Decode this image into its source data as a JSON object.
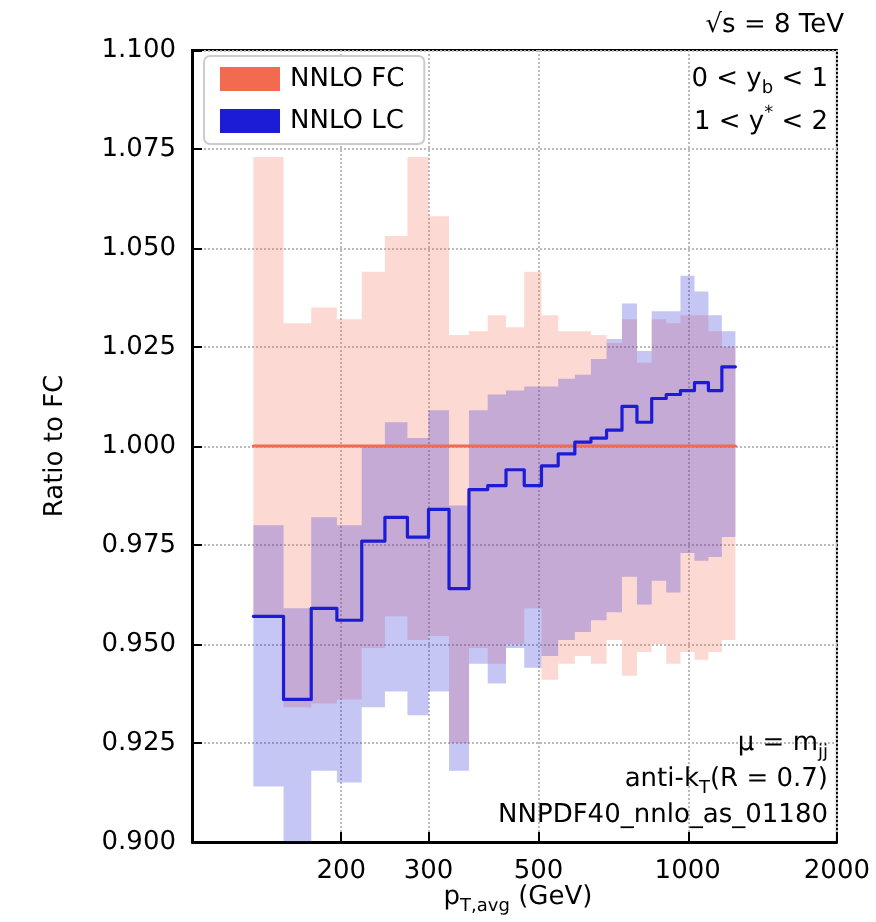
{
  "chart_data": {
    "type": "step",
    "xlabel": "p$_{T,avg}$ (GeV)",
    "ylabel": "Ratio to FC",
    "annotations": [
      "√s = 8 TeV",
      "0 < y$_{b}$ < 1",
      "1 < y$^{*}$ < 2",
      "μ = m$_{jj}$",
      "anti-k$_{T}$(R = 0.7)",
      "NNPDF40_nnlo_as_01180"
    ],
    "log": "x",
    "xlim": [
      100,
      2000
    ],
    "xticks": [
      200,
      300,
      500,
      1000,
      2000
    ],
    "ylim": [
      0.9,
      1.1
    ],
    "yticks": [
      {
        "value": 0.9,
        "label": "0.900"
      },
      {
        "value": 0.925,
        "label": "0.925"
      },
      {
        "value": 0.95,
        "label": "0.950"
      },
      {
        "value": 0.975,
        "label": "0.975"
      },
      {
        "value": 1.0,
        "label": "1.000"
      },
      {
        "value": 1.025,
        "label": "1.025"
      },
      {
        "value": 1.05,
        "label": "1.050"
      },
      {
        "value": 1.075,
        "label": "1.075"
      },
      {
        "value": 1.1,
        "label": "1.100"
      }
    ],
    "x": [
      133,
      153,
      174,
      196,
      220,
      245,
      272,
      300,
      330,
      362,
      395,
      430,
      468,
      507,
      548,
      592,
      638,
      686,
      737,
      790,
      846,
      905,
      967,
      1032,
      1101,
      1172,
      1248
    ],
    "series": [
      {
        "name": "NNLO FC",
        "color": "#f26b50",
        "values": [
          1.0,
          1.0,
          1.0,
          1.0,
          1.0,
          1.0,
          1.0,
          1.0,
          1.0,
          1.0,
          1.0,
          1.0,
          1.0,
          1.0,
          1.0,
          1.0,
          1.0,
          1.0,
          1.0,
          1.0,
          1.0,
          1.0,
          1.0,
          1.0,
          1.0,
          1.0,
          1.0
        ],
        "lower": [
          0.957,
          0.934,
          0.935,
          0.936,
          0.949,
          0.957,
          0.951,
          0.952,
          0.925,
          0.949,
          0.945,
          0.95,
          0.959,
          0.941,
          0.945,
          0.947,
          0.945,
          0.951,
          0.942,
          0.948,
          0.95,
          0.945,
          0.948,
          0.946,
          0.948,
          0.951,
          0.951
        ],
        "upper": [
          1.073,
          1.031,
          1.035,
          1.032,
          1.044,
          1.053,
          1.073,
          1.058,
          1.028,
          1.029,
          1.033,
          1.03,
          1.044,
          1.033,
          1.029,
          1.029,
          1.028,
          1.026,
          1.032,
          1.021,
          1.032,
          1.031,
          1.033,
          1.033,
          1.029,
          1.025,
          1.025
        ]
      },
      {
        "name": "NNLO LC",
        "color": "#1c1cd6",
        "values": [
          0.957,
          0.936,
          0.959,
          0.956,
          0.976,
          0.982,
          0.977,
          0.984,
          0.964,
          0.989,
          0.99,
          0.994,
          0.99,
          0.995,
          0.998,
          1.001,
          1.002,
          1.004,
          1.01,
          1.006,
          1.012,
          1.013,
          1.014,
          1.016,
          1.014,
          1.02,
          1.02
        ],
        "lower": [
          0.914,
          0.9,
          0.918,
          0.915,
          0.934,
          0.938,
          0.932,
          0.938,
          0.918,
          0.945,
          0.94,
          0.949,
          0.944,
          0.947,
          0.951,
          0.953,
          0.956,
          0.958,
          0.967,
          0.96,
          0.966,
          0.963,
          0.973,
          0.971,
          0.972,
          0.977,
          0.977
        ],
        "upper": [
          0.98,
          0.959,
          0.982,
          0.98,
          1.0,
          1.006,
          1.002,
          1.009,
          0.985,
          1.009,
          1.013,
          1.014,
          1.015,
          1.015,
          1.017,
          1.018,
          1.022,
          1.027,
          1.036,
          1.024,
          1.034,
          1.034,
          1.043,
          1.039,
          1.033,
          1.029,
          1.029
        ]
      }
    ],
    "grid": true,
    "legend": "top left",
    "marker": "none",
    "line_style": "solid"
  }
}
